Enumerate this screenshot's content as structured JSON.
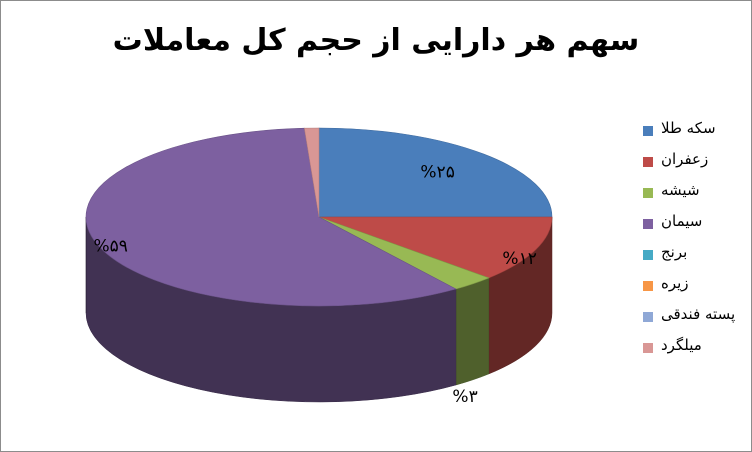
{
  "chart_data": {
    "type": "pie",
    "title": "سهم هر دارایی از حجم کل معاملات",
    "legend_position": "right",
    "categories": [
      "سکه طلا",
      "زعفران",
      "شیشه",
      "سیمان",
      "برنج",
      "زیره",
      "پسته فندقی",
      "میلگرد"
    ],
    "values": [
      25,
      12,
      3,
      59,
      0,
      0,
      0,
      1
    ],
    "data_labels": [
      "%۲۵",
      "%۱۲",
      "%۳",
      "%۵۹",
      "",
      "",
      "",
      ""
    ],
    "colors": [
      "#4a7ebb",
      "#be4b48",
      "#98b954",
      "#7d60a0",
      "#46aac5",
      "#f79646",
      "#8fa8d6",
      "#d99795"
    ]
  }
}
